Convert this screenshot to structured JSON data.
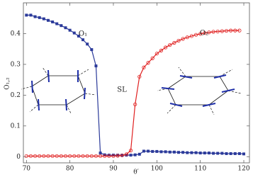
{
  "chart_data": {
    "type": "line",
    "x_label": "θ′",
    "y_label": "O₁,₂",
    "x": [
      70,
      71,
      72,
      73,
      74,
      75,
      76,
      77,
      78,
      79,
      80,
      81,
      82,
      83,
      84,
      85,
      86,
      87,
      88,
      89,
      90,
      91,
      92,
      93,
      94,
      95,
      96,
      97,
      98,
      99,
      100,
      101,
      102,
      103,
      104,
      105,
      106,
      107,
      108,
      109,
      110,
      111,
      112,
      113,
      114,
      115,
      116,
      117,
      118,
      119,
      120
    ],
    "series": [
      {
        "name": "O₁",
        "color": "#2b3a9a",
        "marker": "square",
        "values": [
          0.46,
          0.46,
          0.455,
          0.452,
          0.448,
          0.443,
          0.438,
          0.432,
          0.426,
          0.419,
          0.411,
          0.402,
          0.392,
          0.38,
          0.366,
          0.348,
          0.295,
          0.012,
          0.006,
          0.005,
          0.005,
          0.005,
          0.005,
          0.005,
          0.005,
          0.006,
          0.008,
          0.018,
          0.018,
          0.017,
          0.017,
          0.016,
          0.016,
          0.015,
          0.015,
          0.014,
          0.014,
          0.013,
          0.013,
          0.013,
          0.012,
          0.012,
          0.012,
          0.011,
          0.011,
          0.011,
          0.01,
          0.01,
          0.01,
          0.01,
          0.009
        ]
      },
      {
        "name": "O₂",
        "color": "#e02020",
        "marker": "circle",
        "values": [
          0.002,
          0.002,
          0.002,
          0.002,
          0.002,
          0.002,
          0.002,
          0.002,
          0.002,
          0.002,
          0.002,
          0.002,
          0.002,
          0.002,
          0.002,
          0.002,
          0.002,
          0.002,
          0.002,
          0.002,
          0.002,
          0.003,
          0.004,
          0.008,
          0.02,
          0.17,
          0.26,
          0.29,
          0.305,
          0.32,
          0.335,
          0.345,
          0.355,
          0.363,
          0.37,
          0.377,
          0.383,
          0.388,
          0.392,
          0.396,
          0.399,
          0.402,
          0.404,
          0.406,
          0.407,
          0.408,
          0.409,
          0.41,
          0.41,
          0.41,
          null
        ]
      }
    ],
    "annotations": [
      "O₁",
      "O₂",
      "SL"
    ],
    "xlim": [
      69.3,
      121.3
    ],
    "ylim": [
      -0.02,
      0.5
    ],
    "xticks": [
      70,
      80,
      90,
      100,
      110,
      120
    ],
    "yticks": [
      0,
      0.1,
      0.2,
      0.3,
      0.4
    ]
  }
}
